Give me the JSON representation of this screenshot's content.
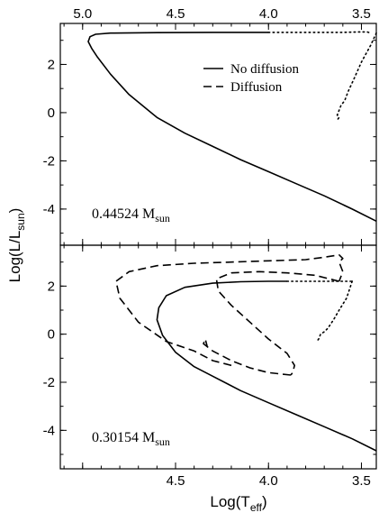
{
  "figure": {
    "y_axis_label_main": "Log(L/L",
    "y_axis_label_sub": "sun",
    "y_axis_label_close": ")",
    "x_axis_label_main": "Log(T",
    "x_axis_label_sub": "eff",
    "x_axis_label_close": ")"
  },
  "chart_data": [
    {
      "type": "line",
      "panel": "top",
      "annotation": "0.44524 M",
      "annotation_sub": "sun",
      "xlim": [
        5.12,
        3.42
      ],
      "ylim": [
        -5.5,
        3.7
      ],
      "x_ticks": [
        5.0,
        4.5,
        4.0,
        3.5
      ],
      "x_tick_labels_top": [
        "5.0",
        "4.5",
        "4.0",
        "3.5"
      ],
      "y_ticks": [
        2,
        0,
        -2,
        -4
      ],
      "y_tick_labels": [
        "2",
        "0",
        "-2",
        "-4"
      ],
      "legend": {
        "position": "upper-right",
        "entries": [
          {
            "label": "No diffusion",
            "style": "solid"
          },
          {
            "label": "Diffusion",
            "style": "dashed"
          }
        ]
      },
      "series": [
        {
          "name": "No diffusion",
          "style": "solid",
          "x": [
            3.42,
            3.55,
            3.7,
            3.85,
            4.0,
            4.15,
            4.3,
            4.45,
            4.6,
            4.75,
            4.85,
            4.92,
            4.95,
            4.97,
            4.96,
            4.93,
            4.85,
            4.6,
            4.3,
            4.0
          ],
          "y": [
            -4.5,
            -4.0,
            -3.45,
            -2.95,
            -2.45,
            -1.95,
            -1.4,
            -0.85,
            -0.2,
            0.75,
            1.6,
            2.3,
            2.65,
            2.95,
            3.15,
            3.25,
            3.3,
            3.32,
            3.33,
            3.33
          ]
        },
        {
          "name": "",
          "style": "dotted",
          "x": [
            4.0,
            3.85,
            3.7,
            3.6,
            3.55,
            3.5,
            3.47,
            3.45
          ],
          "y": [
            3.33,
            3.33,
            3.33,
            3.33,
            3.34,
            3.35,
            3.35,
            3.3
          ]
        },
        {
          "name": "",
          "style": "dotted",
          "x": [
            3.42,
            3.45,
            3.5,
            3.54,
            3.57,
            3.59,
            3.61,
            3.62,
            3.63,
            3.62,
            3.63
          ],
          "y": [
            3.3,
            2.8,
            2.1,
            1.4,
            0.9,
            0.5,
            0.3,
            0.1,
            -0.1,
            -0.2,
            -0.3
          ]
        }
      ]
    },
    {
      "type": "line",
      "panel": "bottom",
      "annotation": "0.30154 M",
      "annotation_sub": "sun",
      "xlim": [
        5.12,
        3.42
      ],
      "ylim": [
        -5.6,
        3.7
      ],
      "x_ticks": [
        5.0,
        4.5,
        4.0,
        3.5
      ],
      "x_tick_labels_bottom": [
        "4.5",
        "4.0",
        "3.5"
      ],
      "y_ticks": [
        2,
        0,
        -2,
        -4
      ],
      "y_tick_labels": [
        "2",
        "0",
        "-2",
        "-4"
      ],
      "series": [
        {
          "name": "No diffusion",
          "style": "solid",
          "x": [
            3.42,
            3.55,
            3.7,
            3.85,
            4.0,
            4.15,
            4.3,
            4.4,
            4.5,
            4.57,
            4.6,
            4.59,
            4.55,
            4.45,
            4.3,
            4.15,
            4.0,
            3.9
          ],
          "y": [
            -4.85,
            -4.35,
            -3.85,
            -3.35,
            -2.85,
            -2.35,
            -1.75,
            -1.35,
            -0.75,
            -0.05,
            0.6,
            1.1,
            1.6,
            1.95,
            2.12,
            2.18,
            2.2,
            2.2
          ]
        },
        {
          "name": "",
          "style": "dotted",
          "x": [
            3.9,
            3.8,
            3.7,
            3.6,
            3.55
          ],
          "y": [
            2.2,
            2.2,
            2.2,
            2.2,
            2.2
          ]
        },
        {
          "name": "",
          "style": "dotted",
          "x": [
            3.55,
            3.58,
            3.62,
            3.65,
            3.68,
            3.7,
            3.72,
            3.73,
            3.74
          ],
          "y": [
            2.2,
            1.5,
            1.0,
            0.6,
            0.25,
            0.1,
            0.0,
            -0.2,
            -0.3
          ]
        },
        {
          "name": "Diffusion",
          "style": "dashed",
          "x": [
            4.2,
            4.3,
            4.4,
            4.55,
            4.7,
            4.8,
            4.82,
            4.75,
            4.6,
            4.4,
            4.2,
            4.0,
            3.8,
            3.7,
            3.62,
            3.6,
            3.62,
            3.6,
            3.62
          ],
          "y": [
            -1.3,
            -1.1,
            -0.7,
            -0.3,
            0.5,
            1.5,
            2.2,
            2.6,
            2.85,
            2.95,
            3.0,
            3.05,
            3.1,
            3.2,
            3.3,
            3.15,
            3.0,
            2.6,
            2.2
          ]
        },
        {
          "name": "Diffusion",
          "style": "dashed",
          "x": [
            3.62,
            3.75,
            3.9,
            4.05,
            4.2,
            4.28,
            4.27,
            4.2,
            4.1,
            4.0,
            3.9,
            3.86,
            3.87,
            3.88
          ],
          "y": [
            2.2,
            2.45,
            2.55,
            2.6,
            2.55,
            2.3,
            1.8,
            1.2,
            0.5,
            -0.2,
            -0.8,
            -1.3,
            -1.6,
            -1.7
          ]
        },
        {
          "name": "Diffusion",
          "style": "dashed",
          "x": [
            3.88,
            4.0,
            4.1,
            4.2,
            4.3,
            4.35,
            4.34,
            4.33
          ],
          "y": [
            -1.7,
            -1.6,
            -1.4,
            -1.1,
            -0.7,
            -0.4,
            -0.2,
            -0.5
          ]
        }
      ]
    }
  ]
}
